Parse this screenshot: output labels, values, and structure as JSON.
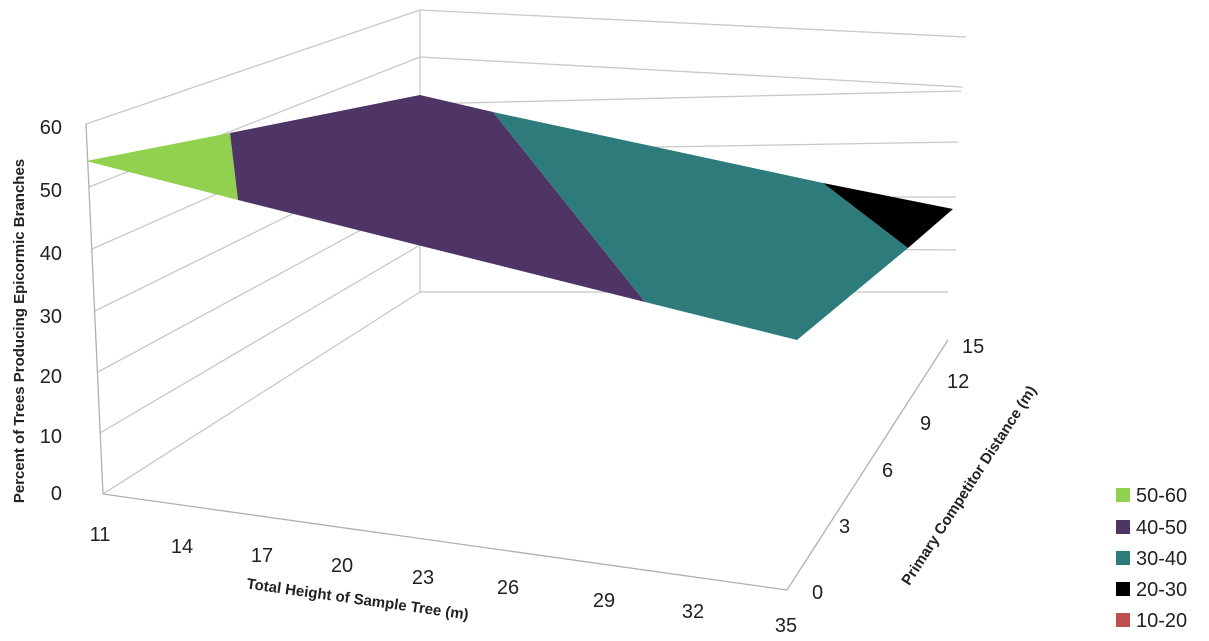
{
  "chart_data": {
    "type": "surface",
    "title": "",
    "xlabel": "Total Height of Sample Tree (m)",
    "ylabel": "Primary Competitor Distance (m)",
    "zlabel": "Percent of Trees Producing Epicormic Branches",
    "x_ticks": [
      "11",
      "14",
      "17",
      "20",
      "23",
      "26",
      "29",
      "32",
      "35"
    ],
    "y_ticks": [
      "0",
      "3",
      "6",
      "9",
      "12",
      "15"
    ],
    "z_ticks": [
      "0",
      "10",
      "20",
      "30",
      "40",
      "50",
      "60"
    ],
    "zlim": [
      0,
      60
    ],
    "grid": true,
    "legend_position": "bottom-right",
    "legend": [
      {
        "label": "50-60",
        "color": "#92d050"
      },
      {
        "label": "40-50",
        "color": "#4f3566"
      },
      {
        "label": "30-40",
        "color": "#2e7b7b"
      },
      {
        "label": "20-30",
        "color": "#000000"
      },
      {
        "label": "10-20",
        "color": "#c0504d"
      }
    ],
    "regions": [
      {
        "band": "50-60",
        "color": "#92d050"
      },
      {
        "band": "40-50",
        "color": "#4f3566"
      },
      {
        "band": "30-40",
        "color": "#2e7b7b"
      },
      {
        "band": "20-30",
        "color": "#000000"
      }
    ]
  }
}
